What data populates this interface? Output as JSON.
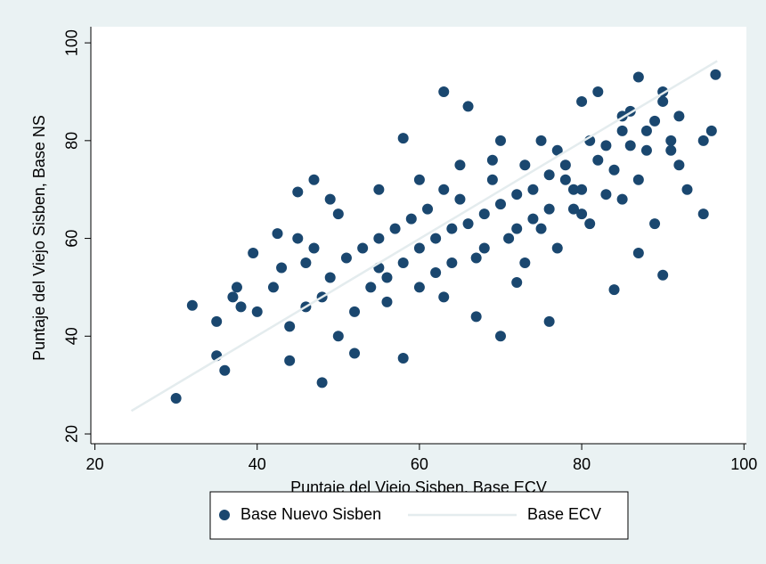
{
  "chart_data": {
    "type": "scatter",
    "x_label": "Puntaje del Viejo Sisben, Base ECV",
    "y_label": "Puntaje del Viejo Sisben, Base NS",
    "xlim": [
      19.5,
      100.3
    ],
    "ylim": [
      18,
      103.3
    ],
    "xticks": [
      20,
      40,
      60,
      80,
      100
    ],
    "yticks": [
      20,
      40,
      60,
      80,
      100
    ],
    "grid": false,
    "legend": "bottom",
    "series": [
      {
        "name": "Base Nuevo Sisben",
        "type": "scatter",
        "color": "#1a476f",
        "x": [
          30,
          32,
          35,
          35,
          36,
          37,
          37.5,
          38,
          39.5,
          40,
          42.5,
          44,
          45,
          46,
          47,
          48,
          49,
          50,
          52,
          55,
          58,
          58,
          63,
          66,
          70,
          72,
          76,
          78,
          80,
          82,
          84,
          87,
          87,
          89,
          90,
          92,
          93,
          95,
          96,
          96.5,
          95,
          90,
          85,
          80,
          75,
          70,
          65,
          60,
          55,
          50,
          45,
          42,
          48,
          52,
          56,
          60,
          64,
          68,
          72,
          76,
          80,
          84,
          88,
          92,
          53,
          57,
          61,
          65,
          69,
          73,
          77,
          81,
          85,
          89,
          58,
          62,
          66,
          70,
          74,
          78,
          82,
          86,
          56,
          60,
          64,
          68,
          72,
          76,
          54,
          62,
          67,
          71,
          75,
          79,
          83,
          87,
          91,
          44,
          46,
          49,
          51,
          47,
          43,
          63,
          67,
          73,
          77,
          81,
          85,
          88,
          91,
          59,
          55,
          63,
          69,
          74,
          79,
          83,
          86,
          90
        ],
        "values": [
          27.3,
          46.3,
          43,
          36,
          33,
          48,
          50,
          46,
          57,
          45,
          61,
          35,
          69.5,
          55,
          72,
          30.5,
          68,
          40,
          36.5,
          60,
          35.5,
          80.5,
          90,
          87,
          40,
          51,
          43,
          75,
          65,
          90,
          49.5,
          93,
          57,
          63,
          52.5,
          75,
          70,
          65,
          82,
          93.5,
          80,
          88,
          85,
          88,
          80,
          80,
          75,
          72,
          70,
          65,
          60,
          50,
          48,
          45,
          47,
          50,
          55,
          58,
          62,
          66,
          70,
          74,
          78,
          85,
          58,
          62,
          66,
          68,
          72,
          75,
          78,
          80,
          82,
          84,
          55,
          60,
          63,
          67,
          70,
          72,
          76,
          79,
          52,
          58,
          62,
          65,
          69,
          73,
          50,
          53,
          56,
          60,
          62,
          66,
          69,
          72,
          78,
          42,
          46,
          52,
          56,
          58,
          54,
          48,
          44,
          55,
          58,
          63,
          68,
          82,
          80,
          64,
          54,
          70,
          76,
          64,
          70,
          79,
          86,
          90
        ]
      },
      {
        "name": "Base ECV",
        "type": "line",
        "color": "#e4ecee",
        "x": [
          24.5,
          96.7
        ],
        "values": [
          24.7,
          96.3
        ]
      }
    ]
  }
}
